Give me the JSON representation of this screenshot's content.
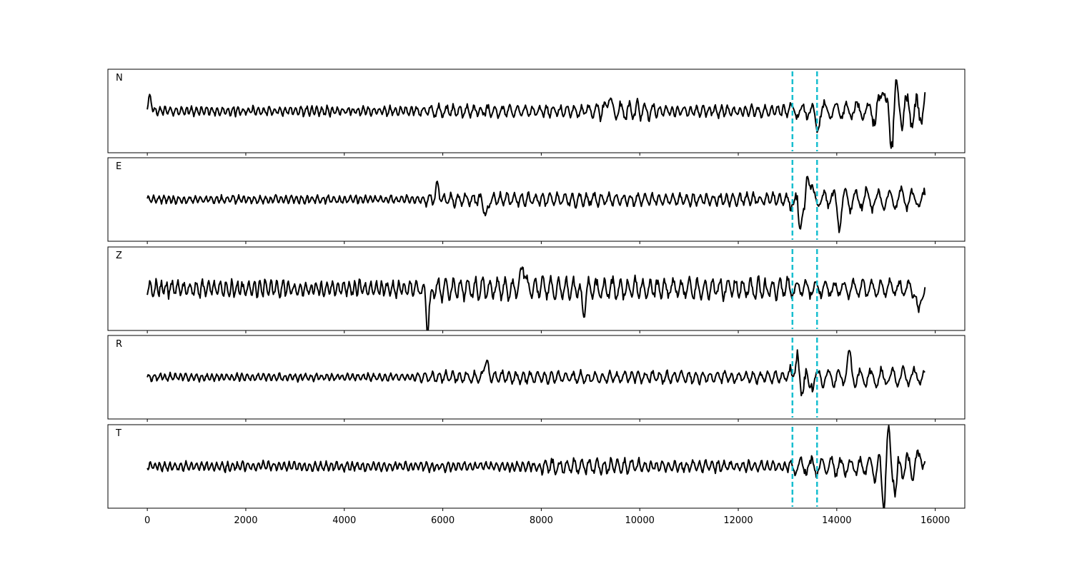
{
  "chart_data": {
    "type": "line",
    "shared_x_axis": true,
    "xlim": [
      -800,
      16600
    ],
    "xticks": [
      0,
      2000,
      4000,
      6000,
      8000,
      10000,
      12000,
      14000,
      16000
    ],
    "xtick_labels": [
      "0",
      "2000",
      "4000",
      "6000",
      "8000",
      "10000",
      "12000",
      "14000",
      "16000"
    ],
    "x_samples": [
      0,
      15800
    ],
    "line_color": "#000000",
    "marker_color": "#17becf",
    "vertical_markers": [
      13100,
      13600
    ],
    "panels": [
      {
        "label": "N",
        "ylim": [
          -1.0,
          1.0
        ],
        "segments": [
          {
            "x0": 0,
            "x1": 5500,
            "amp": 0.15,
            "period": 110
          },
          {
            "x0": 5500,
            "x1": 9000,
            "amp": 0.2,
            "period": 150
          },
          {
            "x0": 9000,
            "x1": 10300,
            "amp": 0.32,
            "period": 170
          },
          {
            "x0": 10300,
            "x1": 13050,
            "amp": 0.18,
            "period": 130
          },
          {
            "x0": 13050,
            "x1": 14700,
            "amp": 0.3,
            "period": 220
          },
          {
            "x0": 14700,
            "x1": 15800,
            "amp": 0.55,
            "period": 200
          }
        ],
        "peaks": [
          {
            "x": 50,
            "y": 0.35
          },
          {
            "x": 9380,
            "y": 0.45
          },
          {
            "x": 14950,
            "y": 0.9
          },
          {
            "x": 15100,
            "y": -0.85
          },
          {
            "x": 15200,
            "y": 0.55
          },
          {
            "x": 13600,
            "y": -0.45
          }
        ]
      },
      {
        "label": "E",
        "ylim": [
          -1.0,
          1.0
        ],
        "segments": [
          {
            "x0": 0,
            "x1": 5600,
            "amp": 0.13,
            "period": 110
          },
          {
            "x0": 5600,
            "x1": 10000,
            "amp": 0.22,
            "period": 150
          },
          {
            "x0": 10000,
            "x1": 13050,
            "amp": 0.2,
            "period": 140
          },
          {
            "x0": 13050,
            "x1": 13600,
            "amp": 0.45,
            "period": 300
          },
          {
            "x0": 13600,
            "x1": 15800,
            "amp": 0.35,
            "period": 230
          }
        ],
        "peaks": [
          {
            "x": 5900,
            "y": 0.35
          },
          {
            "x": 6880,
            "y": -0.45
          },
          {
            "x": 13250,
            "y": -0.95
          },
          {
            "x": 13400,
            "y": 0.7
          },
          {
            "x": 14050,
            "y": -0.55
          }
        ]
      },
      {
        "label": "Z",
        "ylim": [
          -1.0,
          1.0
        ],
        "segments": [
          {
            "x0": 0,
            "x1": 5500,
            "amp": 0.27,
            "period": 120
          },
          {
            "x0": 5500,
            "x1": 13050,
            "amp": 0.35,
            "period": 160
          },
          {
            "x0": 13050,
            "x1": 15800,
            "amp": 0.3,
            "period": 200
          }
        ],
        "peaks": [
          {
            "x": 5700,
            "y": -1.0
          },
          {
            "x": 7630,
            "y": 0.68
          },
          {
            "x": 8850,
            "y": -0.62
          },
          {
            "x": 15660,
            "y": -0.72
          }
        ]
      },
      {
        "label": "R",
        "ylim": [
          -1.0,
          1.0
        ],
        "segments": [
          {
            "x0": 0,
            "x1": 5500,
            "amp": 0.12,
            "period": 110
          },
          {
            "x0": 5500,
            "x1": 13050,
            "amp": 0.2,
            "period": 150
          },
          {
            "x0": 13050,
            "x1": 13600,
            "amp": 0.45,
            "period": 320
          },
          {
            "x0": 13600,
            "x1": 15800,
            "amp": 0.3,
            "period": 220
          }
        ],
        "peaks": [
          {
            "x": 6880,
            "y": 0.45
          },
          {
            "x": 13200,
            "y": 0.95
          },
          {
            "x": 13300,
            "y": -0.7
          },
          {
            "x": 14250,
            "y": 0.6
          }
        ]
      },
      {
        "label": "T",
        "ylim": [
          -1.0,
          1.0
        ],
        "segments": [
          {
            "x0": 0,
            "x1": 8000,
            "amp": 0.15,
            "period": 110
          },
          {
            "x0": 8000,
            "x1": 10000,
            "amp": 0.25,
            "period": 150
          },
          {
            "x0": 10000,
            "x1": 13050,
            "amp": 0.18,
            "period": 130
          },
          {
            "x0": 13050,
            "x1": 14700,
            "amp": 0.3,
            "period": 200
          },
          {
            "x0": 14700,
            "x1": 15800,
            "amp": 0.5,
            "period": 200
          }
        ],
        "peaks": [
          {
            "x": 14950,
            "y": -0.85
          },
          {
            "x": 15050,
            "y": 0.75
          },
          {
            "x": 15200,
            "y": -0.65
          },
          {
            "x": 15720,
            "y": 0.45
          }
        ]
      }
    ]
  }
}
